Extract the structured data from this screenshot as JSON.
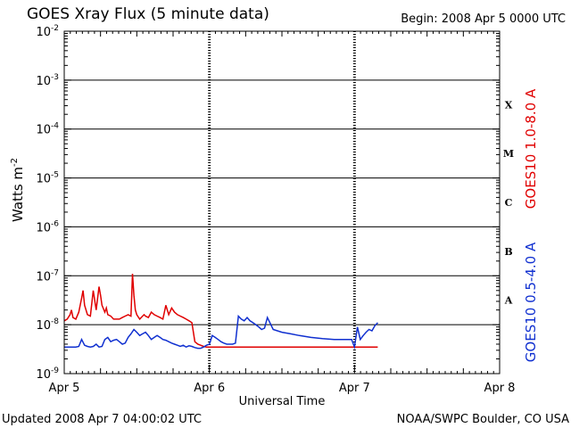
{
  "header": {
    "title": "GOES Xray Flux (5 minute data)",
    "begin": "Begin:  2008 Apr 5 0000 UTC"
  },
  "footer": {
    "updated": "Updated 2008 Apr  7 04:00:02 UTC",
    "credit": "NOAA/SWPC Boulder, CO USA"
  },
  "chart_data": {
    "type": "line",
    "title": "GOES Xray Flux (5 minute data)",
    "xlabel": "Universal Time",
    "ylabel": "Watts m",
    "ylabel_exp": "-2",
    "y_scale": "log",
    "ylim": [
      1e-09,
      0.01
    ],
    "xlim": [
      0,
      3
    ],
    "x_ticks": [
      {
        "x": 0,
        "label": "Apr 5"
      },
      {
        "x": 1,
        "label": "Apr 6"
      },
      {
        "x": 2,
        "label": "Apr 7"
      },
      {
        "x": 3,
        "label": "Apr 8"
      }
    ],
    "y_ticks": [
      {
        "exp": -9,
        "base": "10",
        "sup": "-9"
      },
      {
        "exp": -8,
        "base": "10",
        "sup": "-8"
      },
      {
        "exp": -7,
        "base": "10",
        "sup": "-7"
      },
      {
        "exp": -6,
        "base": "10",
        "sup": "-6"
      },
      {
        "exp": -5,
        "base": "10",
        "sup": "-5"
      },
      {
        "exp": -4,
        "base": "10",
        "sup": "-4"
      },
      {
        "exp": -3,
        "base": "10",
        "sup": "-3"
      },
      {
        "exp": -2,
        "base": "10",
        "sup": "-2"
      }
    ],
    "flare_classes": [
      {
        "label": "A",
        "exp": -7.5
      },
      {
        "label": "B",
        "exp": -6.5
      },
      {
        "label": "C",
        "exp": -5.5
      },
      {
        "label": "M",
        "exp": -4.5
      },
      {
        "label": "X",
        "exp": -3.5
      }
    ],
    "grid": true,
    "series": [
      {
        "name": "GOES10 1.0-8.0 A",
        "color": "#e00000",
        "x": [
          0.0,
          0.02,
          0.04,
          0.05,
          0.06,
          0.08,
          0.1,
          0.12,
          0.13,
          0.14,
          0.16,
          0.18,
          0.2,
          0.22,
          0.24,
          0.25,
          0.26,
          0.28,
          0.29,
          0.3,
          0.32,
          0.33,
          0.34,
          0.36,
          0.38,
          0.4,
          0.42,
          0.44,
          0.46,
          0.47,
          0.48,
          0.49,
          0.5,
          0.52,
          0.54,
          0.55,
          0.56,
          0.58,
          0.6,
          0.62,
          0.64,
          0.66,
          0.68,
          0.7,
          0.72,
          0.74,
          0.76,
          0.78,
          0.8,
          0.82,
          0.84,
          0.86,
          0.88,
          0.9,
          0.92,
          0.94,
          0.96,
          0.98,
          1.0,
          1.02,
          1.05,
          1.1,
          1.2,
          1.3,
          1.4,
          1.6,
          1.8,
          2.0,
          2.1,
          2.16
        ],
        "values": [
          1.2e-08,
          1.3e-08,
          1.6e-08,
          2e-08,
          1.4e-08,
          1.3e-08,
          1.8e-08,
          3.5e-08,
          5e-08,
          2.5e-08,
          1.6e-08,
          1.5e-08,
          5e-08,
          2e-08,
          6e-08,
          4e-08,
          2.5e-08,
          1.8e-08,
          2.2e-08,
          1.6e-08,
          1.5e-08,
          1.4e-08,
          1.3e-08,
          1.3e-08,
          1.3e-08,
          1.4e-08,
          1.5e-08,
          1.6e-08,
          1.5e-08,
          1.1e-07,
          4e-08,
          2e-08,
          1.6e-08,
          1.3e-08,
          1.5e-08,
          1.6e-08,
          1.5e-08,
          1.4e-08,
          1.8e-08,
          1.6e-08,
          1.5e-08,
          1.4e-08,
          1.3e-08,
          2.5e-08,
          1.6e-08,
          2.2e-08,
          1.8e-08,
          1.6e-08,
          1.5e-08,
          1.4e-08,
          1.3e-08,
          1.2e-08,
          1.1e-08,
          4.5e-09,
          4e-09,
          3.8e-09,
          3.6e-09,
          3.5e-09,
          3.5e-09,
          3.5e-09,
          3.5e-09,
          3.5e-09,
          3.5e-09,
          3.5e-09,
          3.5e-09,
          3.5e-09,
          3.5e-09,
          3.5e-09,
          3.5e-09,
          3.5e-09
        ]
      },
      {
        "name": "GOES10 0.5-4.0 A",
        "color": "#1030d0",
        "x": [
          0.0,
          0.04,
          0.08,
          0.1,
          0.12,
          0.14,
          0.16,
          0.18,
          0.2,
          0.22,
          0.24,
          0.26,
          0.28,
          0.3,
          0.32,
          0.34,
          0.36,
          0.38,
          0.4,
          0.42,
          0.44,
          0.46,
          0.48,
          0.5,
          0.52,
          0.54,
          0.56,
          0.58,
          0.6,
          0.62,
          0.64,
          0.66,
          0.68,
          0.7,
          0.72,
          0.74,
          0.76,
          0.78,
          0.8,
          0.82,
          0.84,
          0.86,
          0.88,
          0.9,
          0.92,
          0.94,
          0.96,
          0.98,
          1.0,
          1.02,
          1.04,
          1.06,
          1.08,
          1.1,
          1.12,
          1.14,
          1.16,
          1.18,
          1.2,
          1.22,
          1.24,
          1.26,
          1.28,
          1.3,
          1.32,
          1.34,
          1.36,
          1.38,
          1.4,
          1.44,
          1.5,
          1.56,
          1.62,
          1.7,
          1.78,
          1.86,
          1.94,
          1.98,
          2.0,
          2.02,
          2.04,
          2.06,
          2.08,
          2.1,
          2.12,
          2.14,
          2.16
        ],
        "values": [
          3.5e-09,
          3.5e-09,
          3.5e-09,
          3.6e-09,
          5e-09,
          3.8e-09,
          3.6e-09,
          3.5e-09,
          3.6e-09,
          4e-09,
          3.5e-09,
          3.6e-09,
          5e-09,
          5.5e-09,
          4.5e-09,
          4.8e-09,
          5e-09,
          4.5e-09,
          4e-09,
          4.2e-09,
          5.5e-09,
          6.5e-09,
          8e-09,
          7e-09,
          6e-09,
          6.5e-09,
          7e-09,
          6e-09,
          5e-09,
          5.5e-09,
          6e-09,
          5.5e-09,
          5e-09,
          4.8e-09,
          4.5e-09,
          4.2e-09,
          4e-09,
          3.8e-09,
          3.6e-09,
          3.8e-09,
          3.5e-09,
          3.7e-09,
          3.6e-09,
          3.4e-09,
          3.3e-09,
          3.3e-09,
          3.5e-09,
          3.8e-09,
          4e-09,
          6e-09,
          5.5e-09,
          5e-09,
          4.5e-09,
          4.2e-09,
          4e-09,
          4e-09,
          4e-09,
          4.2e-09,
          1.5e-08,
          1.3e-08,
          1.2e-08,
          1.4e-08,
          1.2e-08,
          1.1e-08,
          1e-08,
          9e-09,
          8e-09,
          8.5e-09,
          1.4e-08,
          8e-09,
          7e-09,
          6.5e-09,
          6e-09,
          5.5e-09,
          5.2e-09,
          5e-09,
          5e-09,
          5e-09,
          3.5e-09,
          9e-09,
          5e-09,
          6e-09,
          7e-09,
          8e-09,
          7.5e-09,
          9.5e-09,
          1.1e-08
        ]
      }
    ]
  }
}
